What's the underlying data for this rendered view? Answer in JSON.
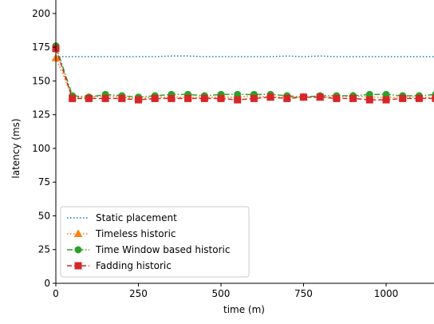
{
  "chart_data": {
    "type": "line",
    "x_label": "time (m)",
    "y_label": "latency (ms)",
    "x": [
      0,
      50,
      100,
      150,
      200,
      250,
      300,
      350,
      400,
      450,
      500,
      550,
      600,
      650,
      700,
      750,
      800,
      850,
      900,
      950,
      1000,
      1050,
      1100,
      1150
    ],
    "xlim": [
      0,
      1145
    ],
    "ylim": [
      0,
      210
    ],
    "xticks": [
      0,
      250,
      500,
      750,
      1000
    ],
    "yticks": [
      0,
      25,
      50,
      75,
      100,
      125,
      150,
      175,
      200
    ],
    "legend": "lower left",
    "series": [
      {
        "name": "Static placement",
        "color": "#1f77b4",
        "dash": "1.5,2.5",
        "marker": "none",
        "values": [
          168,
          168,
          168,
          168,
          168,
          168,
          168,
          168.5,
          168.5,
          168,
          168,
          168,
          168,
          168,
          168.5,
          168,
          168.5,
          168,
          168,
          168,
          168,
          168,
          168,
          168
        ]
      },
      {
        "name": "Timeless historic",
        "color": "#ff7f0e",
        "dash": "1.5,2.5",
        "marker": "triangle",
        "values": [
          167,
          138,
          138,
          139,
          138,
          137,
          138,
          138,
          138,
          138,
          138,
          138,
          139,
          138,
          138,
          138,
          138,
          138,
          139,
          138,
          138,
          138,
          138,
          138
        ]
      },
      {
        "name": "Time Window based historic",
        "color": "#2ca02c",
        "dash": "7,2.5,1.5,2.5",
        "marker": "circle",
        "values": [
          176,
          139,
          138,
          140,
          139,
          138,
          139,
          140,
          140,
          139,
          140,
          140,
          140,
          140,
          139,
          138,
          139,
          139,
          139,
          140,
          140,
          139,
          139,
          140
        ]
      },
      {
        "name": "Fadding historic",
        "color": "#d62728",
        "dash": "6,3",
        "marker": "square",
        "values": [
          174,
          137,
          137,
          137,
          137,
          136,
          137,
          137,
          137,
          137,
          137,
          136,
          137,
          138,
          137,
          138,
          138,
          137,
          137,
          136,
          136,
          137,
          137,
          137
        ]
      }
    ]
  }
}
